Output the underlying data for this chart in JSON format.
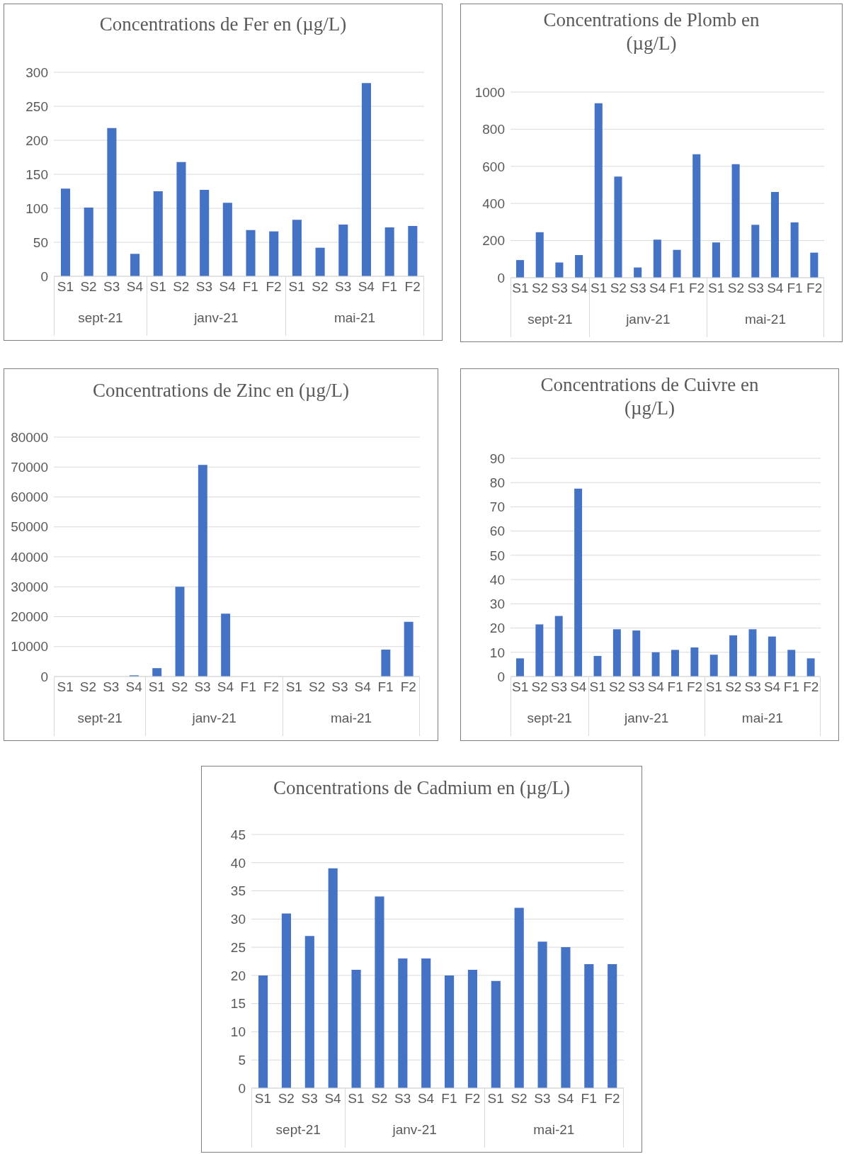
{
  "chart_data": [
    {
      "type": "bar",
      "title": "Concentrations de Fer en (µg/L)",
      "categories": [
        "S1",
        "S2",
        "S3",
        "S4",
        "S1",
        "S2",
        "S3",
        "S4",
        "F1",
        "F2",
        "S1",
        "S2",
        "S3",
        "S4",
        "F1",
        "F2"
      ],
      "values": [
        129,
        101,
        218,
        33,
        125,
        168,
        127,
        108,
        68,
        66,
        83,
        42,
        76,
        284,
        72,
        74
      ],
      "color": "#4472c4",
      "ylim": [
        0,
        300
      ],
      "yticks": [
        0,
        50,
        100,
        150,
        200,
        250,
        300
      ],
      "grid": "y",
      "annotations": [
        "sept-21",
        "janv-21",
        "mai-21"
      ]
    },
    {
      "type": "bar",
      "title": "Concentrations de Plomb en (µg/L)",
      "categories": [
        "S1",
        "S2",
        "S3",
        "S4",
        "S1",
        "S2",
        "S3",
        "S4",
        "F1",
        "F2",
        "S1",
        "S2",
        "S3",
        "S4",
        "F1",
        "F2"
      ],
      "values": [
        95,
        245,
        82,
        122,
        940,
        545,
        55,
        205,
        150,
        665,
        190,
        612,
        285,
        462,
        298,
        135
      ],
      "color": "#4472c4",
      "ylim": [
        0,
        1000
      ],
      "yticks": [
        0,
        200,
        400,
        600,
        800,
        1000
      ],
      "grid": "y",
      "annotations": [
        "sept-21",
        "janv-21",
        "mai-21"
      ]
    },
    {
      "type": "bar",
      "title": "Concentrations de Zinc en (µg/L)",
      "categories": [
        "S1",
        "S2",
        "S3",
        "S4",
        "S1",
        "S2",
        "S3",
        "S4",
        "F1",
        "F2",
        "S1",
        "S2",
        "S3",
        "S4",
        "F1",
        "F2"
      ],
      "values": [
        null,
        null,
        0,
        400,
        2800,
        30000,
        70700,
        21000,
        null,
        null,
        null,
        null,
        null,
        0,
        9000,
        18300
      ],
      "color": "#4472c4",
      "ylim": [
        0,
        80000
      ],
      "yticks": [
        0,
        10000,
        20000,
        30000,
        40000,
        50000,
        60000,
        70000,
        80000
      ],
      "grid": "y",
      "annotations": [
        "sept-21",
        "janv-21",
        "mai-21"
      ]
    },
    {
      "type": "bar",
      "title": "Concentrations de Cuivre en (µg/L)",
      "categories": [
        "S1",
        "S2",
        "S3",
        "S4",
        "S1",
        "S2",
        "S3",
        "S4",
        "F1",
        "F2",
        "S1",
        "S2",
        "S3",
        "S4",
        "F1",
        "F2"
      ],
      "values": [
        7.5,
        21.5,
        25,
        77.5,
        8.5,
        19.5,
        19,
        10,
        11,
        12,
        9,
        17,
        19.5,
        16.5,
        11,
        7.5
      ],
      "color": "#4472c4",
      "ylim": [
        0,
        90
      ],
      "yticks": [
        0,
        10,
        20,
        30,
        40,
        50,
        60,
        70,
        80,
        90
      ],
      "grid": "y",
      "annotations": [
        "sept-21",
        "janv-21",
        "mai-21"
      ]
    },
    {
      "type": "bar",
      "title": "Concentrations de Cadmium en (µg/L)",
      "categories": [
        "S1",
        "S2",
        "S3",
        "S4",
        "S1",
        "S2",
        "S3",
        "S4",
        "F1",
        "F2",
        "S1",
        "S2",
        "S3",
        "S4",
        "F1",
        "F2"
      ],
      "values": [
        20,
        31,
        27,
        39,
        21,
        34,
        23,
        23,
        20,
        21,
        19,
        32,
        26,
        25,
        22,
        22
      ],
      "color": "#4472c4",
      "ylim": [
        0,
        45
      ],
      "yticks": [
        0,
        5,
        10,
        15,
        20,
        25,
        30,
        35,
        40,
        45
      ],
      "grid": "y",
      "annotations": [
        "sept-21",
        "janv-21",
        "mai-21"
      ]
    }
  ]
}
